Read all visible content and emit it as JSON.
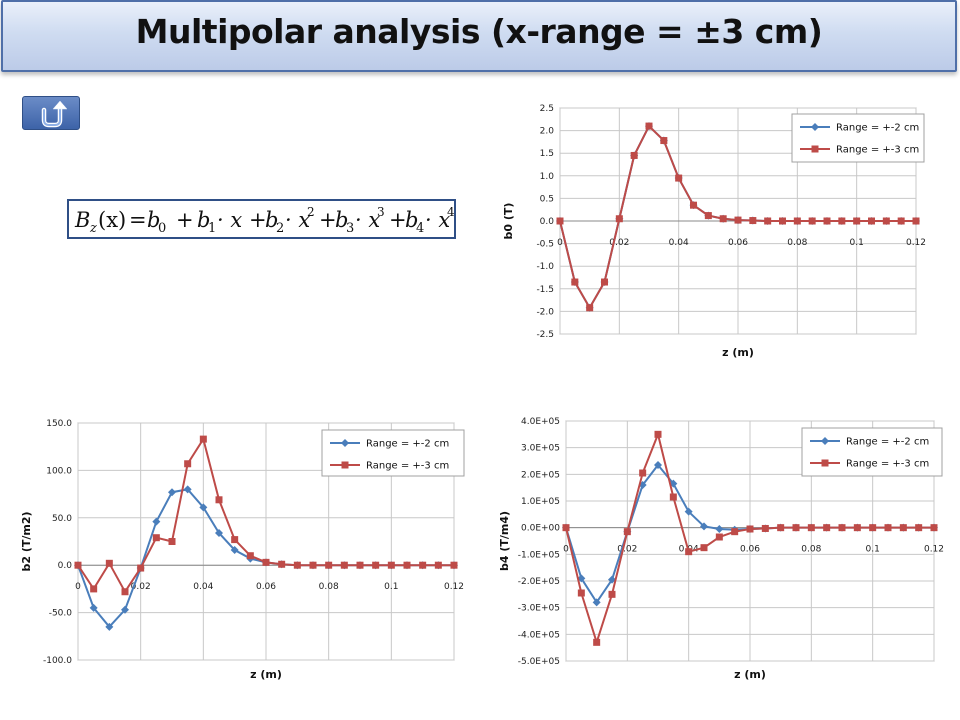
{
  "slide": {
    "title": "Multipolar analysis (x-range = ±3 cm)",
    "back_icon": "u-turn-arrow-icon",
    "colors": {
      "title_bg": "#c9d7ef",
      "title_border": "#4f6fa8",
      "button": "#4a70b0"
    }
  },
  "equation": {
    "lhs_B": "B",
    "lhs_sub": "z",
    "lhs_arg": "(x)",
    "eq": "=",
    "terms": [
      {
        "coef": "b",
        "sub": "0",
        "var": "",
        "pow": ""
      },
      {
        "coef": "b",
        "sub": "1",
        "var": "· x",
        "pow": ""
      },
      {
        "coef": "b",
        "sub": "2",
        "var": "· x",
        "pow": "2"
      },
      {
        "coef": "b",
        "sub": "3",
        "var": "· x",
        "pow": "3"
      },
      {
        "coef": "b",
        "sub": "4",
        "var": "· x",
        "pow": "4"
      }
    ],
    "plus": "+"
  },
  "chart_data": [
    {
      "id": "b0",
      "type": "line",
      "xlabel": "z (m)",
      "ylabel": "b0 (T)",
      "xlim": [
        0,
        0.12
      ],
      "ylim": [
        -2.5,
        2.5
      ],
      "xticks": [
        "0",
        "0.02",
        "0.04",
        "0.06",
        "0.08",
        "0.1",
        "0.12"
      ],
      "yticks": [
        "2.5",
        "2.0",
        "1.5",
        "1.0",
        "0.5",
        "0.0",
        "-0.5",
        "-1.0",
        "-1.5",
        "-2.0",
        "-2.5"
      ],
      "x_tick_axis_at": 0,
      "legend_position": "top-right",
      "grid": true,
      "x": [
        0,
        0.005,
        0.01,
        0.015,
        0.02,
        0.025,
        0.03,
        0.035,
        0.04,
        0.045,
        0.05,
        0.055,
        0.06,
        0.065,
        0.07,
        0.075,
        0.08,
        0.085,
        0.09,
        0.095,
        0.1,
        0.105,
        0.11,
        0.115,
        0.12
      ],
      "series": [
        {
          "name": "Range = +-2 cm",
          "color": "#4a7ebb",
          "marker": "diamond",
          "values": [
            0,
            -1.35,
            -1.92,
            -1.35,
            0.05,
            1.45,
            2.1,
            1.78,
            0.95,
            0.35,
            0.12,
            0.05,
            0.02,
            0.01,
            0,
            0,
            0,
            0,
            0,
            0,
            0,
            0,
            0,
            0,
            0
          ]
        },
        {
          "name": "Range = +-3 cm",
          "color": "#be4b48",
          "marker": "square",
          "values": [
            0,
            -1.35,
            -1.92,
            -1.35,
            0.05,
            1.45,
            2.1,
            1.78,
            0.95,
            0.35,
            0.12,
            0.05,
            0.02,
            0.01,
            0,
            0,
            0,
            0,
            0,
            0,
            0,
            0,
            0,
            0,
            0
          ]
        }
      ]
    },
    {
      "id": "b2",
      "type": "line",
      "xlabel": "z (m)",
      "ylabel": "b2 (T/m2)",
      "xlim": [
        0,
        0.12
      ],
      "ylim": [
        -100,
        150
      ],
      "xticks": [
        "0",
        "0.02",
        "0.04",
        "0.06",
        "0.08",
        "0.1",
        "0.12"
      ],
      "yticks": [
        "150.0",
        "100.0",
        "50.0",
        "0.0",
        "-50.0",
        "-100.0"
      ],
      "x_tick_axis_at": 0,
      "legend_position": "top-right",
      "grid": true,
      "x": [
        0,
        0.005,
        0.01,
        0.015,
        0.02,
        0.025,
        0.03,
        0.035,
        0.04,
        0.045,
        0.05,
        0.055,
        0.06,
        0.065,
        0.07,
        0.075,
        0.08,
        0.085,
        0.09,
        0.095,
        0.1,
        0.105,
        0.11,
        0.115,
        0.12
      ],
      "series": [
        {
          "name": "Range = +-2 cm",
          "color": "#4a7ebb",
          "marker": "diamond",
          "values": [
            0,
            -45,
            -65,
            -47,
            -3,
            46,
            77,
            80,
            61,
            34,
            16,
            7,
            3,
            1,
            0,
            0,
            0,
            0,
            0,
            0,
            0,
            0,
            0,
            0,
            0
          ]
        },
        {
          "name": "Range = +-3 cm",
          "color": "#be4b48",
          "marker": "square",
          "values": [
            0,
            -25,
            2,
            -28,
            -3,
            29,
            25,
            107,
            133,
            69,
            27,
            10,
            3,
            1,
            0,
            0,
            0,
            0,
            0,
            0,
            0,
            0,
            0,
            0,
            0
          ]
        }
      ]
    },
    {
      "id": "b4",
      "type": "line",
      "xlabel": "z (m)",
      "ylabel": "b4 (T/m4)",
      "xlim": [
        0,
        0.12
      ],
      "ylim": [
        -500000,
        400000
      ],
      "xticks": [
        "0",
        "0.02",
        "0.04",
        "0.06",
        "0.08",
        "0.1",
        "0.12"
      ],
      "yticks": [
        "4.0E+05",
        "3.0E+05",
        "2.0E+05",
        "1.0E+05",
        "0.0E+00",
        "-1.0E+05",
        "-2.0E+05",
        "-3.0E+05",
        "-4.0E+05",
        "-5.0E+05"
      ],
      "x_tick_axis_at": 0,
      "legend_position": "top-right",
      "grid": true,
      "x": [
        0,
        0.005,
        0.01,
        0.015,
        0.02,
        0.025,
        0.03,
        0.035,
        0.04,
        0.045,
        0.05,
        0.055,
        0.06,
        0.065,
        0.07,
        0.075,
        0.08,
        0.085,
        0.09,
        0.095,
        0.1,
        0.105,
        0.11,
        0.115,
        0.12
      ],
      "series": [
        {
          "name": "Range = +-2 cm",
          "color": "#4a7ebb",
          "marker": "diamond",
          "values": [
            0,
            -190000,
            -280000,
            -195000,
            -15000,
            160000,
            235000,
            165000,
            60000,
            5000,
            -5000,
            -8000,
            -5000,
            -3000,
            0,
            0,
            0,
            0,
            0,
            0,
            0,
            0,
            0,
            0,
            0
          ]
        },
        {
          "name": "Range = +-3 cm",
          "color": "#be4b48",
          "marker": "square",
          "values": [
            0,
            -245000,
            -430000,
            -250000,
            -15000,
            205000,
            350000,
            115000,
            -90000,
            -75000,
            -35000,
            -15000,
            -5000,
            -3000,
            0,
            0,
            0,
            0,
            0,
            0,
            0,
            0,
            0,
            0,
            0
          ]
        }
      ]
    }
  ]
}
